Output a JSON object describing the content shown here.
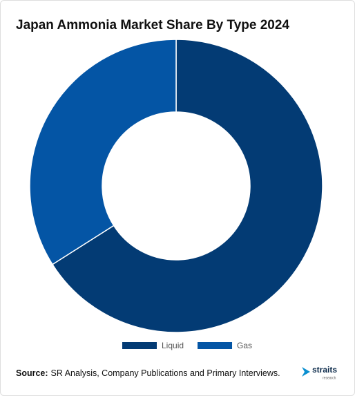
{
  "chart_data": {
    "type": "donut",
    "title": "Japan Ammonia Market Share By Type 2024",
    "categories": [
      "Liquid",
      "Gas"
    ],
    "values": [
      66,
      34
    ],
    "colors": [
      "#033b74",
      "#0455a5"
    ],
    "legend": "bottom",
    "source_label": "Source:",
    "source": "SR Analysis, Company Publications and Primary Interviews.",
    "logo": {
      "name": "straits",
      "tagline": "research"
    }
  }
}
